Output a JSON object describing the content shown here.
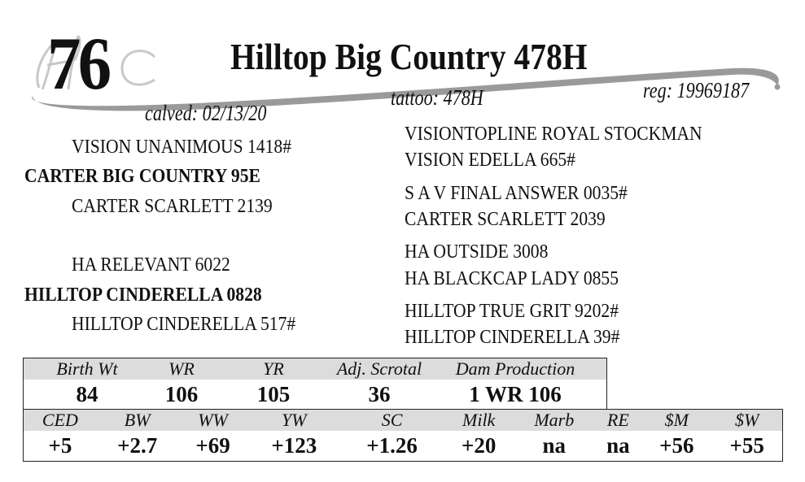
{
  "lot_number": "76",
  "monogram": "HC",
  "animal": {
    "name": "Hilltop Big Country 478H",
    "reg": "reg: 19969187",
    "tattoo": "tattoo: 478H",
    "calved": "calved: 02/13/20"
  },
  "pedigree": {
    "sire_side": {
      "sire_sire": "VISION UNANIMOUS 1418#",
      "sire": "CARTER BIG COUNTRY 95E",
      "sire_dam": "CARTER SCARLETT 2139",
      "ancestors": [
        "VISIONTOPLINE ROYAL STOCKMAN",
        "VISION EDELLA 665#",
        "S A V FINAL ANSWER 0035#",
        "CARTER SCARLETT 2039"
      ]
    },
    "dam_side": {
      "dam_sire": "HA RELEVANT 6022",
      "dam": "HILLTOP CINDERELLA 0828",
      "dam_dam": "HILLTOP CINDERELLA 517#",
      "ancestors": [
        "HA OUTSIDE 3008",
        "HA BLACKCAP LADY 0855",
        "HILLTOP TRUE GRIT 9202#",
        "HILLTOP CINDERELLA 39#"
      ]
    }
  },
  "performance": {
    "headers": [
      "Birth Wt",
      "WR",
      "YR",
      "Adj. Scrotal",
      "Dam Production"
    ],
    "values": [
      "84",
      "106",
      "105",
      "36",
      "1 WR 106"
    ]
  },
  "epds": {
    "headers": [
      "CED",
      "BW",
      "WW",
      "YW",
      "SC",
      "Milk",
      "Marb",
      "RE",
      "$M",
      "$W"
    ],
    "values": [
      "+5",
      "+2.7",
      "+69",
      "+123",
      "+1.26",
      "+20",
      "na",
      "na",
      "+56",
      "+55"
    ]
  },
  "colors": {
    "header_bg": "#dcdcdc",
    "swoosh": "#9a9a9a"
  }
}
